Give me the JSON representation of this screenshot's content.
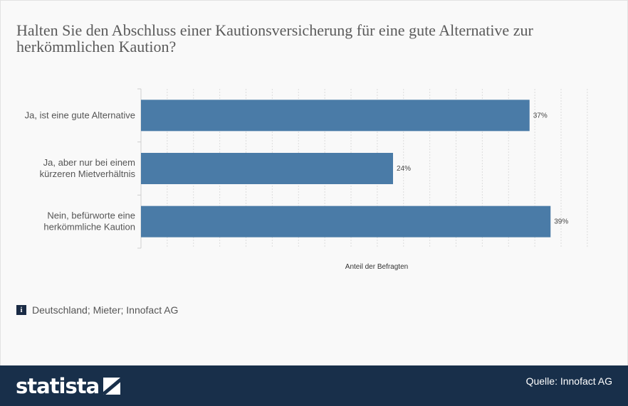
{
  "title": "Halten Sie den Abschluss einer Kautionsversicherung für eine gute Alternative zur herkömmlichen Kaution?",
  "note": {
    "icon": "info-icon",
    "text": "Deutschland; Mieter; Innofact AG"
  },
  "footer": {
    "brand": "statista",
    "brand_icon": "statista-logo-icon",
    "source": "Quelle: Innofact AG",
    "background": "#182f4a"
  },
  "chart_data": {
    "type": "bar",
    "orientation": "horizontal",
    "categories": [
      [
        "Ja, ist eine gute Alternative"
      ],
      [
        "Ja, aber nur bei einem",
        "kürzeren Mietverhältnis"
      ],
      [
        "Nein, befürworte eine",
        "herkömmliche Kaution"
      ]
    ],
    "values": [
      37,
      24,
      39
    ],
    "value_labels": [
      "37%",
      "24%",
      "39%"
    ],
    "xlabel": "Anteil der Befragten",
    "xlim": [
      0,
      40
    ],
    "grid": true,
    "bar_color": "#4a7ba7"
  }
}
